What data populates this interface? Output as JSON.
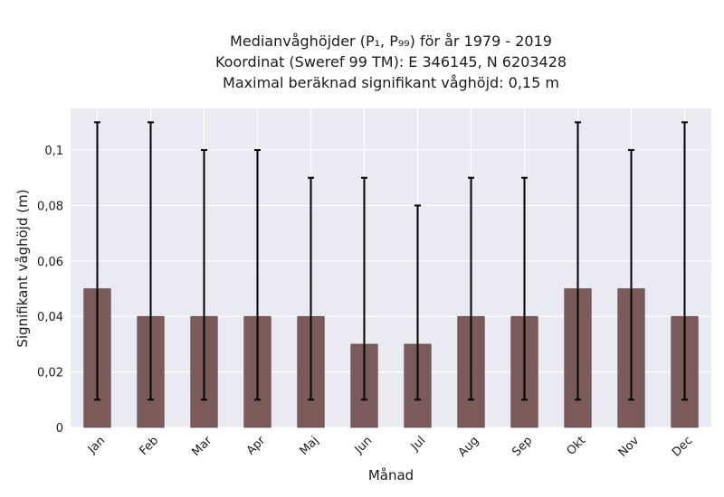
{
  "title_lines": [
    "Medianvåghöjder (P₁, P₉₉) för år 1979 - 2019",
    "Koordinat (Sweref 99 TM): E 346145, N 6203428",
    "Maximal beräknad signifikant våghöjd: 0,15 m"
  ],
  "chart_data": {
    "type": "bar",
    "categories": [
      "Jan",
      "Feb",
      "Mar",
      "Apr",
      "Maj",
      "Jun",
      "Jul",
      "Aug",
      "Sep",
      "Okt",
      "Nov",
      "Dec"
    ],
    "values": [
      0.05,
      0.04,
      0.04,
      0.04,
      0.04,
      0.03,
      0.03,
      0.04,
      0.04,
      0.05,
      0.05,
      0.04
    ],
    "error_low": [
      0.01,
      0.01,
      0.01,
      0.01,
      0.01,
      0.01,
      0.01,
      0.01,
      0.01,
      0.01,
      0.01,
      0.01
    ],
    "error_high": [
      0.11,
      0.11,
      0.1,
      0.1,
      0.09,
      0.09,
      0.08,
      0.09,
      0.09,
      0.11,
      0.1,
      0.11
    ],
    "xlabel": "Månad",
    "ylabel": "Signifikant våghöjd (m)",
    "ylim": [
      0,
      0.115
    ],
    "yticks": [
      0,
      0.02,
      0.04,
      0.06,
      0.08,
      0.1
    ],
    "ytick_labels": [
      "0",
      "0,02",
      "0,04",
      "0,06",
      "0,08",
      "0,1"
    ],
    "grid": true,
    "bar_color": "#7b5a5a",
    "background_color": "#eaeaf2"
  }
}
